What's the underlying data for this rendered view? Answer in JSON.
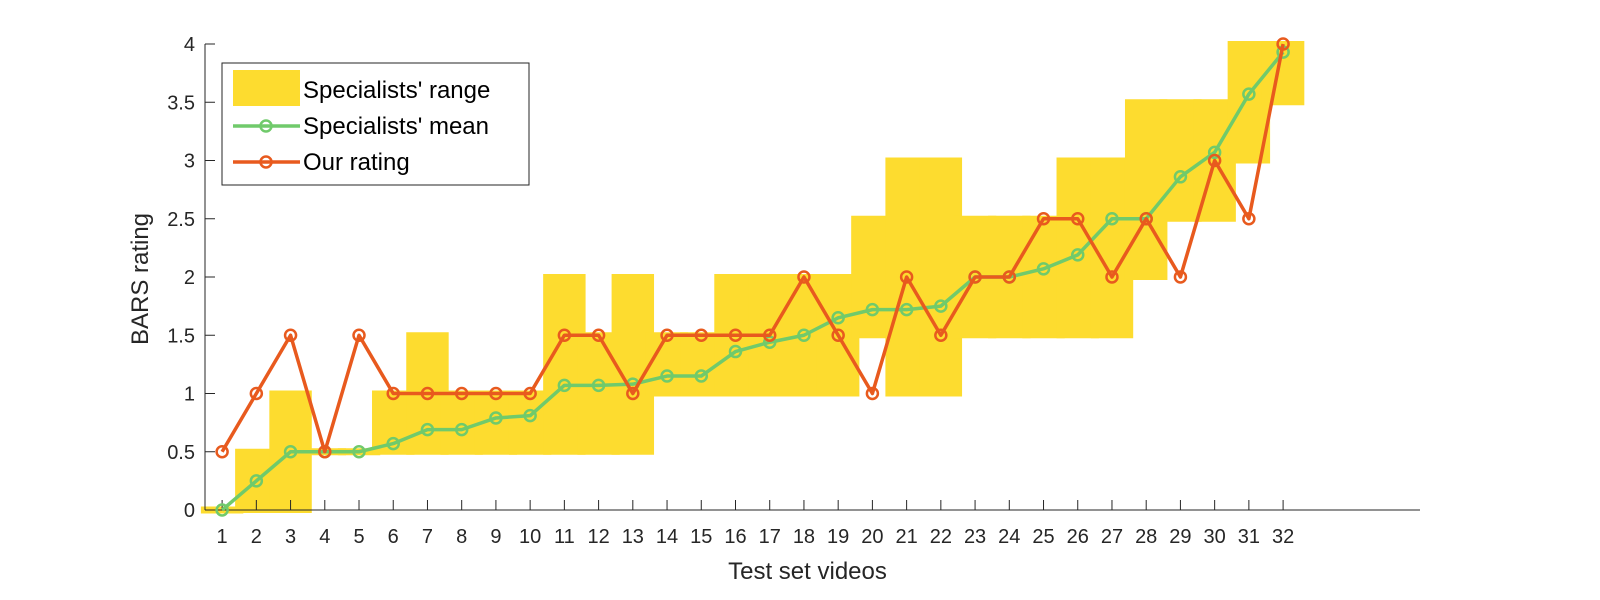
{
  "chart_data": {
    "type": "line",
    "title": "",
    "xlabel": "Test set videos",
    "ylabel": "BARS rating",
    "xlim": [
      0.5,
      36
    ],
    "ylim": [
      0,
      4
    ],
    "grid": false,
    "legend_position": "top-left",
    "x": [
      1,
      2,
      3,
      4,
      5,
      6,
      7,
      8,
      9,
      10,
      11,
      12,
      13,
      14,
      15,
      16,
      17,
      18,
      19,
      20,
      21,
      22,
      23,
      24,
      25,
      26,
      27,
      28,
      29,
      30,
      31,
      32
    ],
    "x_tick_labels": [
      "1",
      "2",
      "3",
      "4",
      "5",
      "6",
      "7",
      "8",
      "9",
      "10",
      "11",
      "12",
      "13",
      "14",
      "15",
      "16",
      "17",
      "18",
      "19",
      "20",
      "21",
      "22",
      "23",
      "24",
      "25",
      "26",
      "27",
      "28",
      "29",
      "30",
      "31",
      "32"
    ],
    "y_tick_labels": [
      "0",
      "0.5",
      "1",
      "1.5",
      "2",
      "2.5",
      "3",
      "3.5",
      "4"
    ],
    "series": [
      {
        "name": "Specialists' range",
        "kind": "range",
        "low": [
          0,
          0,
          0,
          0.5,
          0.5,
          0.5,
          0.5,
          0.5,
          0.5,
          0.5,
          0.5,
          0.5,
          0.5,
          1,
          1,
          1,
          1,
          1,
          1,
          1.5,
          1,
          1,
          1.5,
          1.5,
          1.5,
          1.5,
          1.5,
          2,
          2.5,
          2.5,
          3,
          3.5
        ],
        "high": [
          0,
          0.5,
          1,
          0.5,
          0.5,
          1,
          1.5,
          1,
          1,
          1,
          2,
          1.5,
          2,
          1.5,
          1.5,
          2,
          2,
          2,
          2,
          2.5,
          3,
          3,
          2.5,
          2.5,
          2.5,
          3,
          3,
          3.5,
          3.5,
          3.5,
          4,
          4
        ],
        "color": "#FDDC2F"
      },
      {
        "name": "Specialists' mean",
        "kind": "line",
        "values": [
          0,
          0.25,
          0.5,
          0.5,
          0.5,
          0.57,
          0.69,
          0.69,
          0.79,
          0.81,
          1.07,
          1.07,
          1.08,
          1.15,
          1.15,
          1.36,
          1.44,
          1.5,
          1.65,
          1.72,
          1.72,
          1.75,
          2,
          2,
          2.07,
          2.19,
          2.5,
          2.5,
          2.86,
          3.07,
          3.57,
          3.93
        ],
        "color": "#70CA6B"
      },
      {
        "name": "Our rating",
        "kind": "line",
        "values": [
          0.5,
          1,
          1.5,
          0.5,
          1.5,
          1,
          1,
          1,
          1,
          1,
          1.5,
          1.5,
          1,
          1.5,
          1.5,
          1.5,
          1.5,
          2,
          1.5,
          1,
          2,
          1.5,
          2,
          2,
          2.5,
          2.5,
          2,
          2.5,
          2,
          3,
          2.5,
          4
        ],
        "color": "#E85A1E"
      }
    ]
  }
}
